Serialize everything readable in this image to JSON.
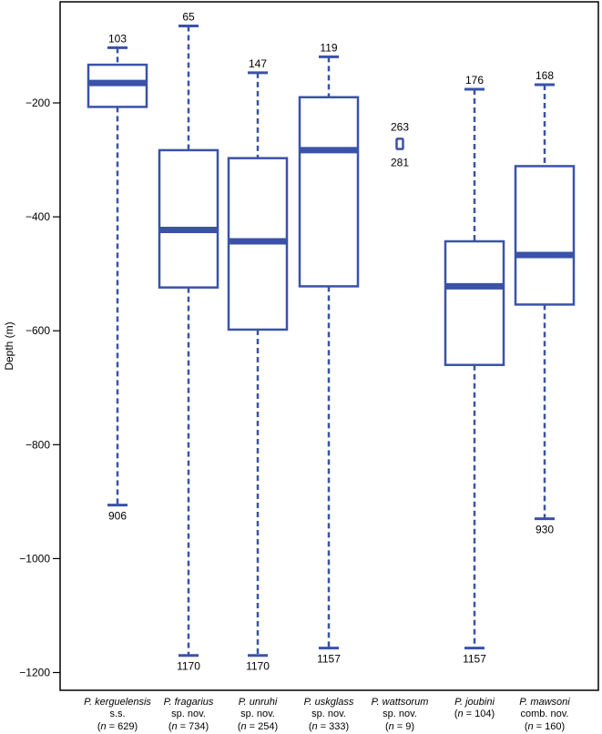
{
  "chart_data": {
    "type": "box",
    "ylabel": "Depth (m)",
    "ylim": [
      -1210,
      -50
    ],
    "yticks": [
      -200,
      -400,
      -600,
      -800,
      -1000,
      -1200
    ],
    "ytick_labels": [
      "−200",
      "−400",
      "−600",
      "−800",
      "−1000",
      "−1200"
    ],
    "grid": false,
    "box_color": "#3a52a8",
    "categories": [
      {
        "species": "P. kerguelensis",
        "line2": "s.s.",
        "n_label": "(n = 629)",
        "whisker_high": -103,
        "q3": -133,
        "median": -165,
        "q1": -207,
        "whisker_low": -906,
        "top_label": "103",
        "bottom_label": "906"
      },
      {
        "species": "P. fragarius",
        "line2": "sp. nov.",
        "n_label": "(n = 734)",
        "whisker_high": -65,
        "q3": -283,
        "median": -423,
        "q1": -524,
        "whisker_low": -1170,
        "top_label": "65",
        "bottom_label": "1170"
      },
      {
        "species": "P. unruhi",
        "line2": "sp. nov.",
        "n_label": "(n = 254)",
        "whisker_high": -147,
        "q3": -297,
        "median": -443,
        "q1": -598,
        "whisker_low": -1170,
        "top_label": "147",
        "bottom_label": "1170"
      },
      {
        "species": "P. uskglass",
        "line2": "sp. nov.",
        "n_label": "(n = 333)",
        "whisker_high": -119,
        "q3": -190,
        "median": -283,
        "q1": -522,
        "whisker_low": -1157,
        "top_label": "119",
        "bottom_label": "1157"
      },
      {
        "species": "P. wattsorum",
        "line2": "sp. nov.",
        "n_label": "(n = 9)",
        "whisker_high": -263,
        "q3": -263,
        "median": -272,
        "q1": -281,
        "whisker_low": -281,
        "top_label": "263",
        "bottom_label": "281"
      },
      {
        "species": "P. joubini",
        "line2": "",
        "n_label": "(n = 104)",
        "whisker_high": -176,
        "q3": -443,
        "median": -522,
        "q1": -660,
        "whisker_low": -1157,
        "top_label": "176",
        "bottom_label": "1157"
      },
      {
        "species": "P. mawsoni",
        "line2": "comb. nov.",
        "n_label": "(n = 160)",
        "whisker_high": -168,
        "q3": -311,
        "median": -467,
        "q1": -554,
        "whisker_low": -930,
        "top_label": "168",
        "bottom_label": "930"
      }
    ]
  }
}
